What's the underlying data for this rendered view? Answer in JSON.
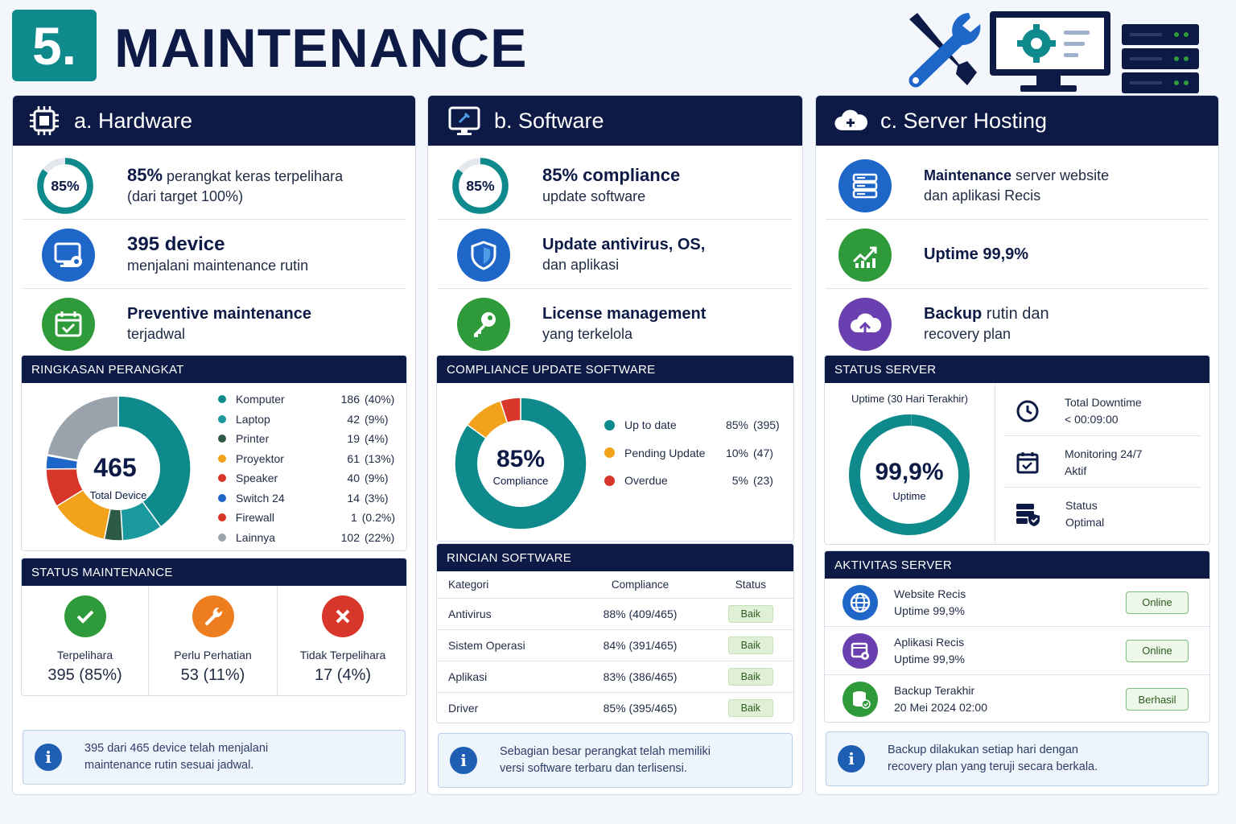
{
  "header": {
    "number": "5.",
    "title": "MAINTENANCE"
  },
  "hardware": {
    "title": "a. Hardware",
    "features": [
      {
        "ring_label": "85%",
        "ring_fraction": 0.85,
        "bold": "85%",
        "line1": " perangkat keras terpelihara",
        "line2": "(dari target 100%)"
      },
      {
        "bold": "395 device",
        "line2": "menjalani maintenance rutin",
        "icon": "monitor-settings-icon"
      },
      {
        "bold": "Preventive maintenance",
        "line2": "terjadwal",
        "icon": "calendar-check-icon"
      }
    ],
    "summary": {
      "title": "RINGKASAN PERANGKAT",
      "total": "465",
      "total_label": "Total Device",
      "items": [
        {
          "name": "Komputer",
          "count": "186",
          "pct": "(40%)",
          "value": 186,
          "color": "#0e8a8c"
        },
        {
          "name": "Laptop",
          "count": "42",
          "pct": "(9%)",
          "value": 42,
          "color": "#1a9a9e"
        },
        {
          "name": "Printer",
          "count": "19",
          "pct": "(4%)",
          "value": 19,
          "color": "#2d5a46"
        },
        {
          "name": "Proyektor",
          "count": "61",
          "pct": "(13%)",
          "value": 61,
          "color": "#f2a21b"
        },
        {
          "name": "Speaker",
          "count": "40",
          "pct": "(9%)",
          "value": 40,
          "color": "#d9362b"
        },
        {
          "name": "Switch 24",
          "count": "14",
          "pct": "(3%)",
          "value": 14,
          "color": "#1f66c9"
        },
        {
          "name": "Firewall",
          "count": "1",
          "pct": "(0.2%)",
          "value": 1,
          "color": "#d9362b"
        },
        {
          "name": "Lainnya",
          "count": "102",
          "pct": "(22%)",
          "value": 102,
          "color": "#9aa3ab"
        }
      ]
    },
    "status": {
      "title": "STATUS MAINTENANCE",
      "cells": [
        {
          "label": "Terpelihara",
          "value": "395 (85%)",
          "color": "#2e9a3a",
          "icon": "check-icon"
        },
        {
          "label": "Perlu Perhatian",
          "value": "53 (11%)",
          "color": "#ee7d1f",
          "icon": "wrench-icon"
        },
        {
          "label": "Tidak Terpelihara",
          "value": "17 (4%)",
          "color": "#d9362b",
          "icon": "x-icon"
        }
      ]
    },
    "info": {
      "line1": "395 dari 465 device telah menjalani",
      "line2": "maintenance rutin sesuai jadwal."
    }
  },
  "software": {
    "title": "b. Software",
    "features": [
      {
        "ring_label": "85%",
        "ring_fraction": 0.85,
        "bold": "85% compliance",
        "line2": "update software"
      },
      {
        "bold": "Update antivirus, OS,",
        "line2": "dan aplikasi",
        "icon": "shield-icon"
      },
      {
        "bold": "License management",
        "line2": "yang terkelola",
        "icon": "key-icon"
      }
    ],
    "compliance": {
      "title": "COMPLIANCE UPDATE SOFTWARE",
      "center_value": "85%",
      "center_label": "Compliance",
      "items": [
        {
          "name": "Up to date",
          "pct": "85%",
          "count": "(395)",
          "value": 85,
          "color": "#0e8a8c"
        },
        {
          "name": "Pending Update",
          "pct": "10%",
          "count": "(47)",
          "value": 10,
          "color": "#f2a21b"
        },
        {
          "name": "Overdue",
          "pct": "5%",
          "count": "(23)",
          "value": 5,
          "color": "#d9362b"
        }
      ]
    },
    "details": {
      "title": "RINCIAN SOFTWARE",
      "headers": [
        "Kategori",
        "Compliance",
        "Status"
      ],
      "rows": [
        {
          "category": "Antivirus",
          "compliance": "88% (409/465)",
          "status": "Baik"
        },
        {
          "category": "Sistem Operasi",
          "compliance": "84% (391/465)",
          "status": "Baik"
        },
        {
          "category": "Aplikasi",
          "compliance": "83% (386/465)",
          "status": "Baik"
        },
        {
          "category": "Driver",
          "compliance": "85% (395/465)",
          "status": "Baik"
        }
      ]
    },
    "info": {
      "line1": "Sebagian besar perangkat telah memiliki",
      "line2": "versi software terbaru dan terlisensi."
    }
  },
  "server": {
    "title": "c. Server Hosting",
    "features": [
      {
        "bold": "Maintenance",
        "line1": " server website",
        "line2": "dan aplikasi Recis",
        "icon": "server-icon"
      },
      {
        "bold": "Uptime 99,9%",
        "icon": "chart-up-icon"
      },
      {
        "bold": "Backup",
        "line1": " rutin dan",
        "line2": "recovery plan",
        "icon": "cloud-upload-icon"
      }
    ],
    "status": {
      "title": "STATUS SERVER",
      "uptime_title": "Uptime (30 Hari Terakhir)",
      "uptime_value": "99,9%",
      "uptime_label": "Uptime",
      "uptime_fraction": 0.999,
      "rows": [
        {
          "line1": "Total Downtime",
          "line2": "< 00:09:00",
          "icon": "clock-icon"
        },
        {
          "line1": "Monitoring 24/7",
          "line2": "Aktif",
          "icon": "calendar-icon"
        },
        {
          "line1": "Status",
          "line2": "Optimal",
          "icon": "server-shield-icon"
        }
      ]
    },
    "activity": {
      "title": "AKTIVITAS SERVER",
      "rows": [
        {
          "line1": "Website Recis",
          "line2": "Uptime 99,9%",
          "badge": "Online",
          "color": "#1f66c9",
          "icon": "globe-icon"
        },
        {
          "line1": "Aplikasi Recis",
          "line2": "Uptime 99,9%",
          "badge": "Online",
          "color": "#6a3fb0",
          "icon": "app-settings-icon"
        },
        {
          "line1": "Backup Terakhir",
          "line2": "20 Mei 2024 02:00",
          "badge": "Berhasil",
          "color": "#2e9a3a",
          "icon": "database-icon"
        }
      ]
    },
    "info": {
      "line1": "Backup dilakukan setiap hari dengan",
      "line2": "recovery plan yang teruji secara berkala."
    }
  },
  "colors": {
    "navy": "#0d1a45",
    "teal": "#0e8a8c",
    "blue": "#1f66c9",
    "green": "#2e9a3a",
    "purple": "#6a3fb0"
  }
}
